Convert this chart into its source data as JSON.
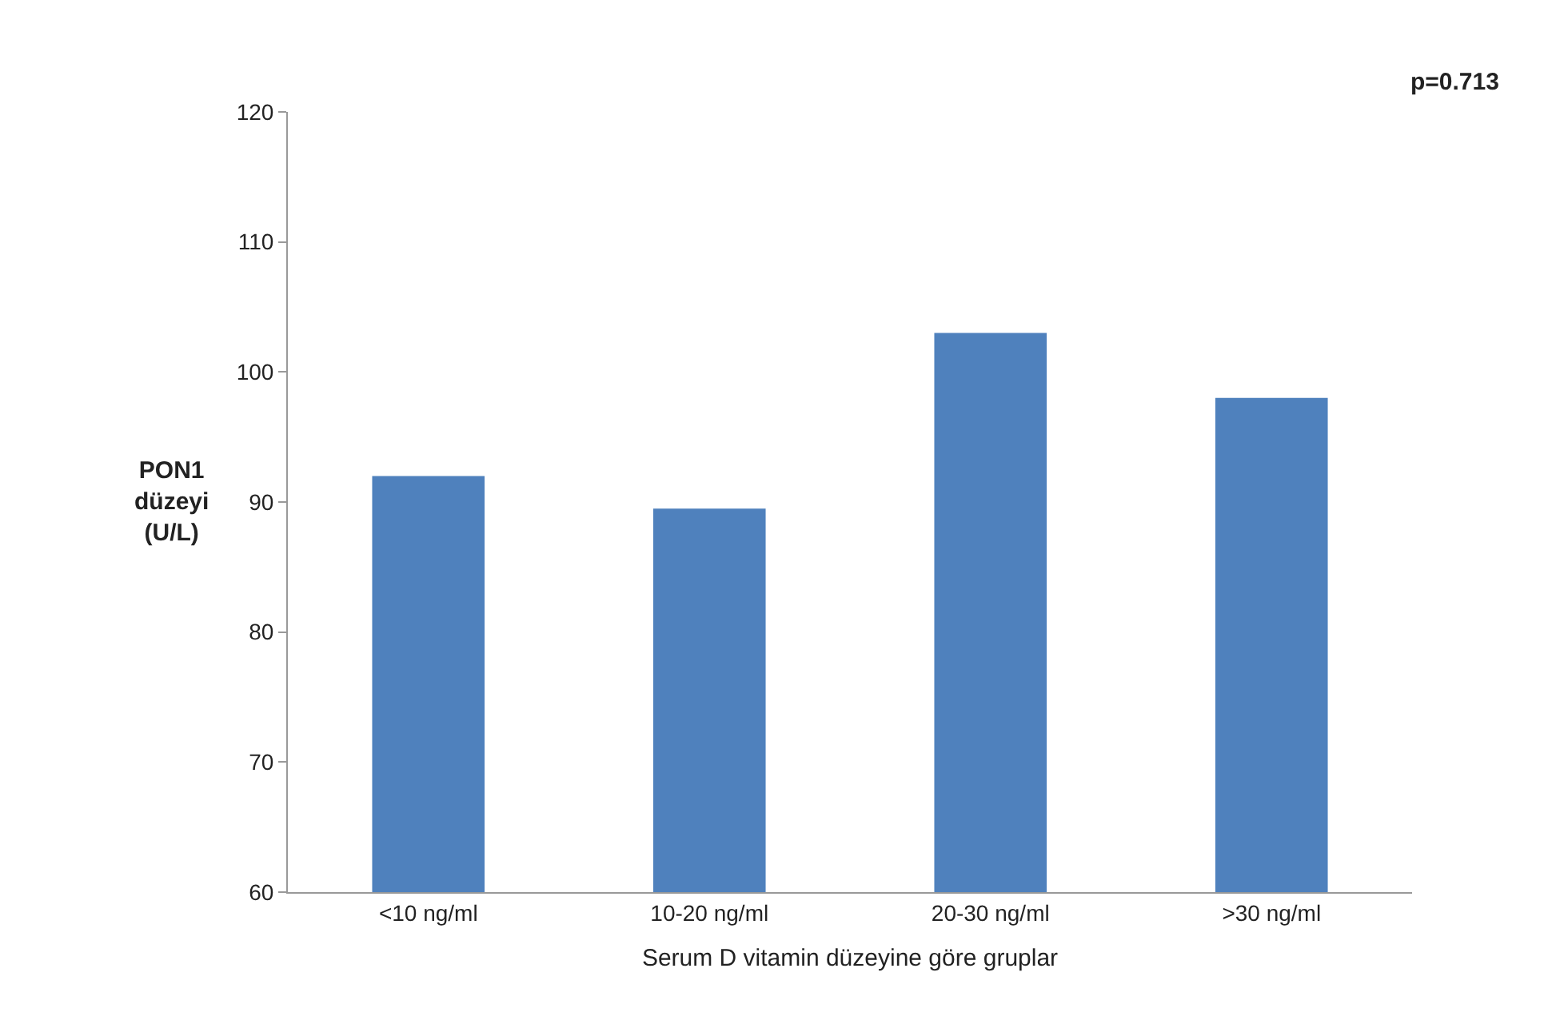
{
  "chart_data": {
    "type": "bar",
    "xlabel": "Serum D vitamin düzeyine göre gruplar",
    "ylabel": "PON1\ndüzeyi\n(U/L)",
    "categories": [
      "<10 ng/ml",
      "10-20 ng/ml",
      "20-30 ng/ml",
      ">30 ng/ml"
    ],
    "values": [
      92,
      89.5,
      103,
      98
    ],
    "color": "#4f81bd",
    "ylim": [
      60,
      120
    ],
    "yticks": [
      60,
      70,
      80,
      90,
      100,
      110,
      120
    ],
    "grid": false,
    "annotations": [
      "p=0.713"
    ]
  }
}
